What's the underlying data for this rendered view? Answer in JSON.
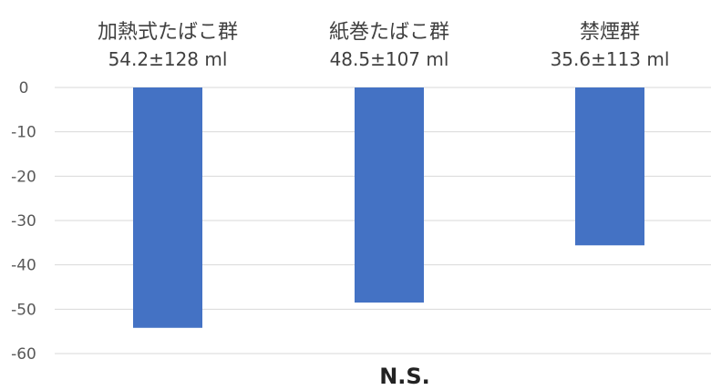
{
  "chart_data": {
    "type": "bar",
    "title": "",
    "xlabel": "",
    "ylabel": "",
    "categories": [
      "加熱式たばこ群",
      "紙巻たばこ群",
      "禁煙群"
    ],
    "category_values_text": [
      "54.2±128 ml",
      "48.5±107 ml",
      "35.6±113 ml"
    ],
    "values": [
      -54.2,
      -48.5,
      -35.6
    ],
    "ylim": [
      -60,
      0
    ],
    "yticks": [
      0,
      -10,
      -20,
      -30,
      -40,
      -50,
      -60
    ],
    "grid": true,
    "bar_color": "#4472c4",
    "footer_text": "N.S."
  }
}
